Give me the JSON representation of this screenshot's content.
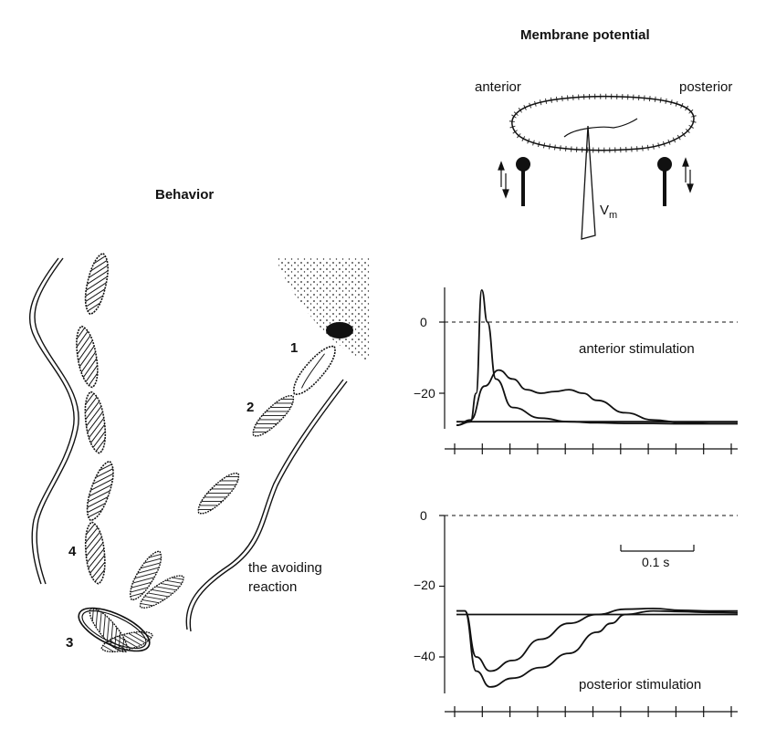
{
  "titles": {
    "behavior": "Behavior",
    "membrane": "Membrane potential"
  },
  "cell_diagram": {
    "anterior": "anterior",
    "posterior": "posterior",
    "vm_main": "V",
    "vm_sub": "m"
  },
  "behavior_panel": {
    "labels": [
      "1",
      "2",
      "3",
      "4"
    ],
    "caption_line1": "the avoiding",
    "caption_line2": "reaction"
  },
  "chart_data": [
    {
      "type": "line",
      "annotation": "anterior stimulation",
      "ylim": [
        -30,
        10
      ],
      "yticks": [
        0,
        -20
      ],
      "ytick_labels": [
        "0",
        "−20"
      ],
      "xlim": [
        0,
        1.0
      ],
      "series": [
        {
          "x": [
            0,
            0.05,
            0.07,
            0.09,
            0.11,
            0.14,
            0.2,
            0.3,
            0.4,
            0.5,
            0.6,
            0.7,
            0.8,
            0.9,
            1.0
          ],
          "y": [
            -29,
            -28,
            -20,
            9,
            0,
            -16,
            -24,
            -27,
            -28,
            -28.3,
            -28.5,
            -28.5,
            -28.6,
            -28.6,
            -28.6
          ]
        },
        {
          "x": [
            0,
            0.05,
            0.1,
            0.15,
            0.2,
            0.25,
            0.3,
            0.35,
            0.4,
            0.45,
            0.5,
            0.6,
            0.7,
            0.8,
            0.9,
            1.0
          ],
          "y": [
            -29,
            -27.5,
            -18,
            -13.5,
            -16,
            -19,
            -20,
            -19.5,
            -19,
            -20,
            -22,
            -25.5,
            -27.5,
            -28.2,
            -28.5,
            -28.5
          ]
        },
        {
          "x": [
            0,
            0.2,
            0.4,
            0.6,
            0.8,
            1.0
          ],
          "y": [
            -28,
            -28,
            -28,
            -28,
            -28,
            -28
          ]
        }
      ]
    },
    {
      "type": "line",
      "annotation": "posterior stimulation",
      "scale_bar": "0.1 s",
      "ylim": [
        -50,
        0
      ],
      "yticks": [
        0,
        -20,
        -40
      ],
      "ytick_labels": [
        "0",
        "−20",
        "−40"
      ],
      "xlim": [
        0,
        1.0
      ],
      "series": [
        {
          "x": [
            0,
            0.03,
            0.07,
            0.12,
            0.2,
            0.3,
            0.4,
            0.5,
            0.6,
            0.7,
            0.8,
            0.9,
            1.0
          ],
          "y": [
            -27,
            -27,
            -40,
            -44,
            -41,
            -35,
            -30.5,
            -28,
            -26.5,
            -26.3,
            -26.8,
            -27,
            -27
          ]
        },
        {
          "x": [
            0,
            0.03,
            0.07,
            0.12,
            0.2,
            0.3,
            0.4,
            0.5,
            0.55,
            0.6,
            0.7,
            0.8,
            0.9,
            1.0
          ],
          "y": [
            -27,
            -27,
            -44,
            -48.5,
            -46,
            -43,
            -39,
            -33,
            -30.5,
            -28,
            -27,
            -27.2,
            -27.4,
            -27.5
          ]
        },
        {
          "x": [
            0,
            0.2,
            0.4,
            0.6,
            0.8,
            1.0
          ],
          "y": [
            -28,
            -28,
            -28,
            -28,
            -28,
            -28
          ]
        }
      ]
    }
  ]
}
